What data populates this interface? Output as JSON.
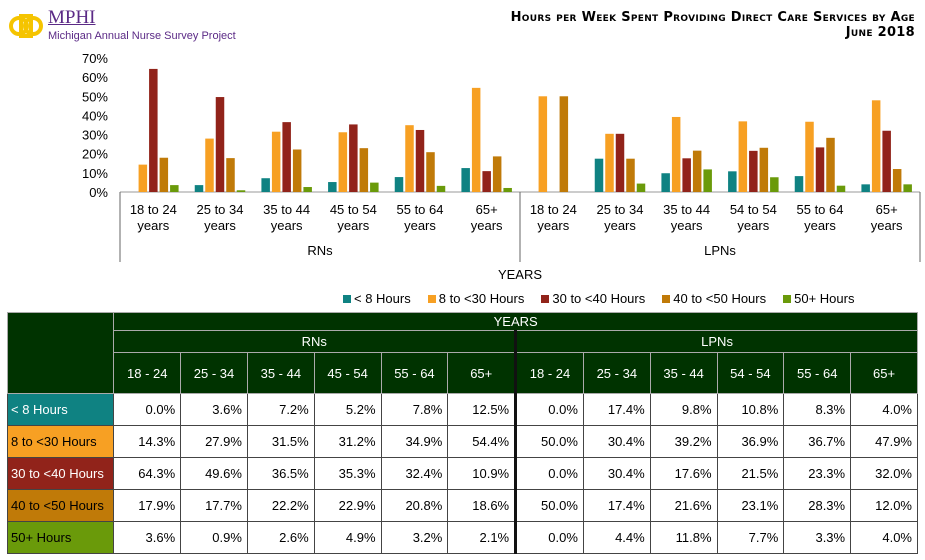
{
  "logo": {
    "brand": "MPHI",
    "subtitle": "Michigan Annual Nurse Survey Project"
  },
  "title": {
    "line1": "Hours per Week Spent Providing Direct Care Services by Age",
    "line2": "June 2018"
  },
  "chart_data": {
    "type": "bar",
    "title": "Hours per Week Spent Providing Direct Care Services by Age",
    "xlabel": "YEARS",
    "ylabel": "",
    "ylim": [
      0,
      70
    ],
    "yticks": [
      "0%",
      "10%",
      "20%",
      "30%",
      "40%",
      "50%",
      "60%",
      "70%"
    ],
    "groups": [
      {
        "name": "RNs",
        "categories": [
          "18 to 24 years",
          "25 to 34 years",
          "35 to 44 years",
          "45 to 54 years",
          "55 to 64 years",
          "65+ years"
        ]
      },
      {
        "name": "LPNs",
        "categories": [
          "18 to 24 years",
          "25 to 34 years",
          "35 to 44 years",
          "54 to 54 years",
          "55 to 64 years",
          "65+ years"
        ]
      }
    ],
    "series": [
      {
        "name": "< 8 Hours",
        "color": "#0f8282",
        "values": [
          0.0,
          3.6,
          7.2,
          5.2,
          7.8,
          12.5,
          0.0,
          17.4,
          9.8,
          10.8,
          8.3,
          4.0
        ]
      },
      {
        "name": "8 to <30 Hours",
        "color": "#f7a023",
        "values": [
          14.3,
          27.9,
          31.5,
          31.2,
          34.9,
          54.4,
          50.0,
          30.4,
          39.2,
          36.9,
          36.7,
          47.9
        ]
      },
      {
        "name": "30 to <40 Hours",
        "color": "#91231a",
        "values": [
          64.3,
          49.6,
          36.5,
          35.3,
          32.4,
          10.9,
          0.0,
          30.4,
          17.6,
          21.5,
          23.3,
          32.0
        ]
      },
      {
        "name": "40 to <50 Hours",
        "color": "#c07a08",
        "values": [
          17.9,
          17.7,
          22.2,
          22.9,
          20.8,
          18.6,
          50.0,
          17.4,
          21.6,
          23.1,
          28.3,
          12.0
        ]
      },
      {
        "name": "50+ Hours",
        "color": "#6a9a0a",
        "values": [
          3.6,
          0.9,
          2.6,
          4.9,
          3.2,
          2.1,
          0.0,
          4.4,
          11.8,
          7.7,
          3.3,
          4.0
        ]
      }
    ],
    "legend": "bottom",
    "grid": false
  },
  "table": {
    "years": "YEARS",
    "rns": "RNs",
    "lpns": "LPNs",
    "ages": [
      "18 - 24",
      "25 - 34",
      "35 - 44",
      "45 - 54",
      "55 - 64",
      "65+",
      "18 - 24",
      "25 - 34",
      "35 - 44",
      "54 - 54",
      "55 - 64",
      "65+"
    ],
    "rows": [
      {
        "label": "< 8 Hours",
        "color": "#0f8282",
        "text": "#fff",
        "cells": [
          "0.0%",
          "3.6%",
          "7.2%",
          "5.2%",
          "7.8%",
          "12.5%",
          "0.0%",
          "17.4%",
          "9.8%",
          "10.8%",
          "8.3%",
          "4.0%"
        ]
      },
      {
        "label": "8 to <30 Hours",
        "color": "#f7a023",
        "text": "#000",
        "cells": [
          "14.3%",
          "27.9%",
          "31.5%",
          "31.2%",
          "34.9%",
          "54.4%",
          "50.0%",
          "30.4%",
          "39.2%",
          "36.9%",
          "36.7%",
          "47.9%"
        ]
      },
      {
        "label": "30 to <40 Hours",
        "color": "#91231a",
        "text": "#fff",
        "cells": [
          "64.3%",
          "49.6%",
          "36.5%",
          "35.3%",
          "32.4%",
          "10.9%",
          "0.0%",
          "30.4%",
          "17.6%",
          "21.5%",
          "23.3%",
          "32.0%"
        ]
      },
      {
        "label": "40 to <50 Hours",
        "color": "#c07a08",
        "text": "#000",
        "cells": [
          "17.9%",
          "17.7%",
          "22.2%",
          "22.9%",
          "20.8%",
          "18.6%",
          "50.0%",
          "17.4%",
          "21.6%",
          "23.1%",
          "28.3%",
          "12.0%"
        ]
      },
      {
        "label": "50+ Hours",
        "color": "#6a9a0a",
        "text": "#000",
        "cells": [
          "3.6%",
          "0.9%",
          "2.6%",
          "4.9%",
          "3.2%",
          "2.1%",
          "0.0%",
          "4.4%",
          "11.8%",
          "7.7%",
          "3.3%",
          "4.0%"
        ]
      }
    ]
  }
}
